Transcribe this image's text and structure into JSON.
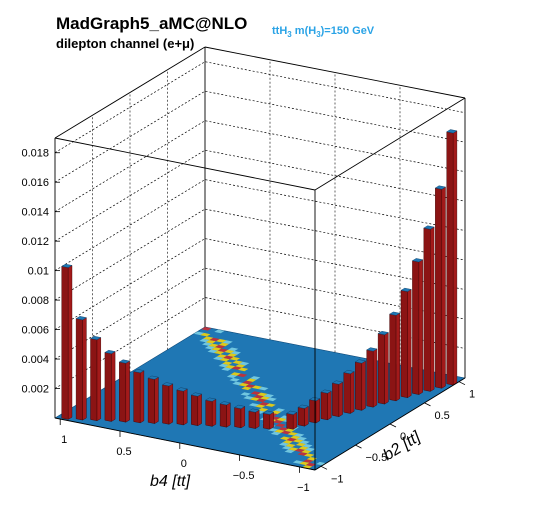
{
  "header": {
    "title": "MadGraph5_aMC@NLO",
    "subtitle": "dilepton channel (e+μ)",
    "process_pre": "ttH",
    "process_sub": "3",
    "process_mid": " m(H",
    "process_sub2": "3",
    "process_post": ")=150  GeV",
    "process_color": "#2aa3e6"
  },
  "chart_data": {
    "type": "lego",
    "xlabel": "b4 [tt]",
    "ylabel": "b2 [tt]",
    "xlim": [
      -1,
      1
    ],
    "ylim": [
      -1,
      1
    ],
    "zlim": [
      0,
      0.019
    ],
    "x_ticks": [
      "1",
      "0.5",
      "0",
      "−0.5",
      "−1"
    ],
    "y_ticks": [
      "−1",
      "−0.5",
      "0",
      "0.5",
      "1"
    ],
    "z_ticks": [
      "0.002",
      "0.004",
      "0.006",
      "0.008",
      "0.01",
      "0.012",
      "0.014",
      "0.016",
      "0.018"
    ],
    "grid": true,
    "bar_color": "#8b1414",
    "surface_color": "#1f77b4",
    "peak_left": {
      "b4": 1.0,
      "b2": -1.0,
      "value": 0.0103
    },
    "peak_right": {
      "b4": -1.0,
      "b2": 1.0,
      "value": 0.0171
    },
    "edge_left_values": [
      0.0103,
      0.0068,
      0.0055,
      0.0046,
      0.004,
      0.0034,
      0.003,
      0.0026,
      0.0023,
      0.002,
      0.0017,
      0.0015,
      0.0013,
      0.0011,
      0.001
    ],
    "edge_right_values": [
      0.0171,
      0.0135,
      0.011,
      0.009,
      0.0072,
      0.0058,
      0.0047,
      0.0038,
      0.0032,
      0.0027,
      0.0022,
      0.0018,
      0.0015,
      0.0012,
      0.001
    ]
  }
}
